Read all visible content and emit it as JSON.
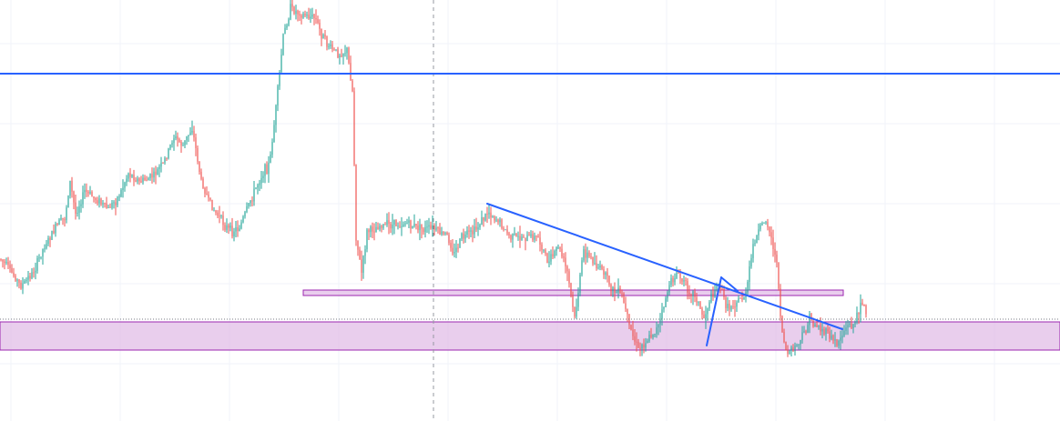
{
  "colors": {
    "background": "#ffffff",
    "grid": "#f0f3fa",
    "up": "#26a69a",
    "down": "#ef5350",
    "trendline": "#2962ff",
    "zone_fill": "#e1bee7",
    "zone_border": "#9c27b0",
    "crosshair": "#9598a1",
    "dotted_level": "#787b86"
  },
  "chart_data": {
    "type": "candlestick",
    "title": "",
    "xlabel": "",
    "ylabel": "",
    "xlim": [
      0,
      950
    ],
    "ylim": [
      0,
      463
    ],
    "grid": true,
    "price_path": [
      [
        0,
        285
      ],
      [
        12,
        300
      ],
      [
        22,
        315
      ],
      [
        35,
        300
      ],
      [
        48,
        270
      ],
      [
        60,
        250
      ],
      [
        70,
        240
      ],
      [
        76,
        200
      ],
      [
        82,
        235
      ],
      [
        92,
        210
      ],
      [
        105,
        220
      ],
      [
        118,
        230
      ],
      [
        130,
        215
      ],
      [
        140,
        190
      ],
      [
        152,
        200
      ],
      [
        165,
        195
      ],
      [
        178,
        180
      ],
      [
        190,
        150
      ],
      [
        200,
        160
      ],
      [
        210,
        140
      ],
      [
        220,
        200
      ],
      [
        230,
        225
      ],
      [
        240,
        240
      ],
      [
        252,
        255
      ],
      [
        262,
        250
      ],
      [
        272,
        225
      ],
      [
        285,
        195
      ],
      [
        295,
        180
      ],
      [
        302,
        120
      ],
      [
        310,
        40
      ],
      [
        318,
        10
      ],
      [
        330,
        15
      ],
      [
        345,
        20
      ],
      [
        355,
        45
      ],
      [
        370,
        60
      ],
      [
        380,
        55
      ],
      [
        386,
        100
      ],
      [
        390,
        260
      ],
      [
        396,
        300
      ],
      [
        402,
        255
      ],
      [
        415,
        248
      ],
      [
        430,
        248
      ],
      [
        445,
        245
      ],
      [
        460,
        252
      ],
      [
        475,
        252
      ],
      [
        490,
        260
      ],
      [
        498,
        280
      ],
      [
        505,
        262
      ],
      [
        520,
        255
      ],
      [
        535,
        232
      ],
      [
        548,
        245
      ],
      [
        560,
        262
      ],
      [
        575,
        260
      ],
      [
        590,
        262
      ],
      [
        602,
        290
      ],
      [
        612,
        270
      ],
      [
        622,
        300
      ],
      [
        630,
        350
      ],
      [
        640,
        275
      ],
      [
        652,
        290
      ],
      [
        662,
        300
      ],
      [
        672,
        320
      ],
      [
        682,
        325
      ],
      [
        690,
        360
      ],
      [
        700,
        385
      ],
      [
        712,
        370
      ],
      [
        722,
        360
      ],
      [
        732,
        320
      ],
      [
        742,
        300
      ],
      [
        752,
        315
      ],
      [
        762,
        325
      ],
      [
        772,
        350
      ],
      [
        778,
        330
      ],
      [
        788,
        310
      ],
      [
        798,
        340
      ],
      [
        808,
        330
      ],
      [
        818,
        325
      ],
      [
        826,
        270
      ],
      [
        834,
        250
      ],
      [
        840,
        240
      ],
      [
        848,
        270
      ],
      [
        853,
        300
      ],
      [
        857,
        360
      ],
      [
        863,
        390
      ],
      [
        870,
        385
      ],
      [
        878,
        375
      ],
      [
        888,
        352
      ],
      [
        898,
        360
      ],
      [
        908,
        368
      ],
      [
        918,
        378
      ],
      [
        928,
        360
      ],
      [
        938,
        355
      ],
      [
        945,
        328
      ],
      [
        952,
        352
      ]
    ],
    "drawings": {
      "horizontal_lines": [
        {
          "name": "resistance-line",
          "value": 81
        }
      ],
      "trendlines": [
        {
          "name": "descending-trendline",
          "points": [
            [
              535,
              224
            ],
            [
              925,
              362
            ]
          ]
        },
        {
          "name": "trendline-short-a",
          "points": [
            [
              776,
              380
            ],
            [
              792,
              305
            ]
          ]
        },
        {
          "name": "trendline-short-b",
          "points": [
            [
              792,
              305
            ],
            [
              810,
              320
            ]
          ]
        }
      ],
      "zones": [
        {
          "name": "upper-zone",
          "x_start": 333,
          "x_end": 926,
          "y_start": 319,
          "y_end": 325
        },
        {
          "name": "lower-zone",
          "x_start": 0,
          "x_end": 1164,
          "y_start": 354,
          "y_end": 385
        }
      ],
      "dotted_level": {
        "name": "current-price-level",
        "value": 351
      },
      "crosshair_x": 476
    }
  }
}
